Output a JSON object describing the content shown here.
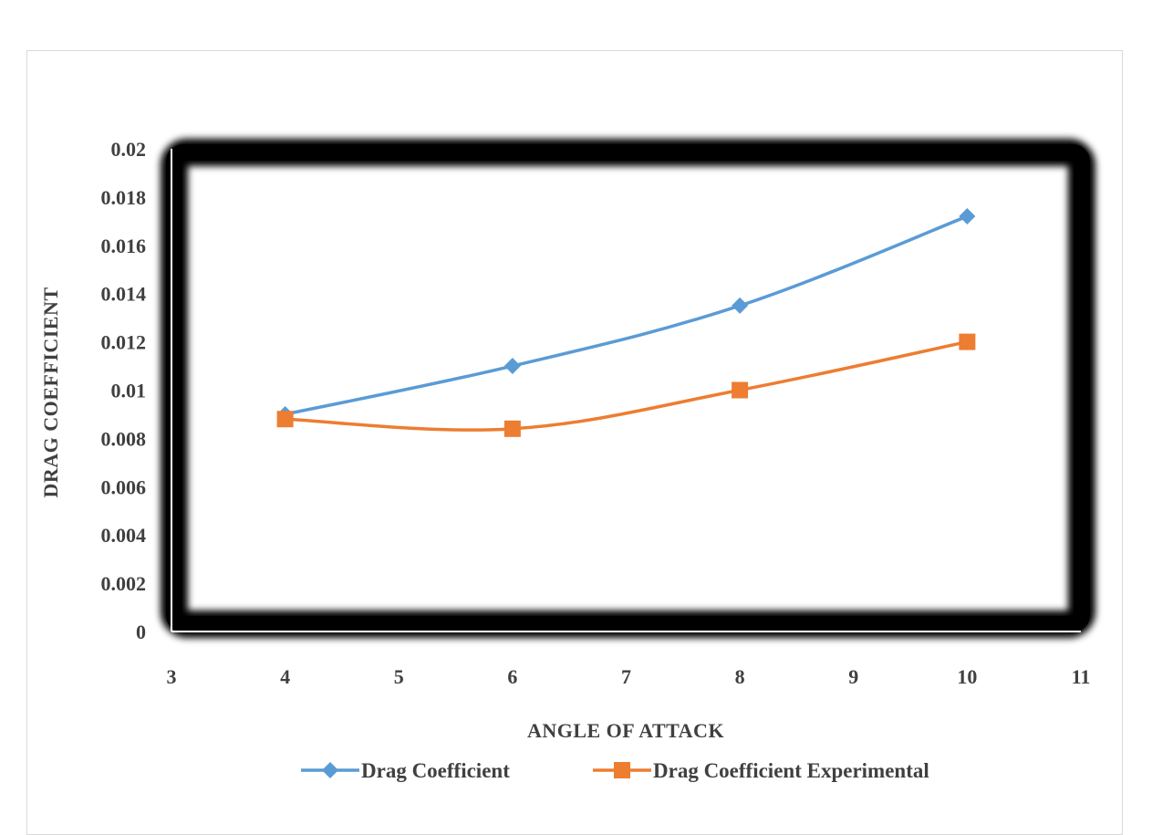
{
  "chart_data": {
    "type": "line",
    "xlabel": "ANGLE OF ATTACK",
    "ylabel": "DRAG  COEFFICIENT",
    "xlim": [
      3,
      11
    ],
    "ylim": [
      0,
      0.02
    ],
    "x_ticks": [
      "3",
      "4",
      "5",
      "6",
      "7",
      "8",
      "9",
      "10",
      "11"
    ],
    "y_ticks": [
      "0",
      "0.002",
      "0.004",
      "0.006",
      "0.008",
      "0.01",
      "0.012",
      "0.014",
      "0.016",
      "0.018",
      "0.02"
    ],
    "legend_position": "bottom",
    "grid": false,
    "smooth": true,
    "series": [
      {
        "name": "Drag Coefficient",
        "color": "#5b9bd5",
        "marker": "diamond",
        "x": [
          4,
          6,
          8,
          10
        ],
        "y": [
          0.009,
          0.011,
          0.0135,
          0.0172
        ]
      },
      {
        "name": "Drag Coefficient Experimental",
        "color": "#ed7d31",
        "marker": "square",
        "x": [
          4,
          6,
          8,
          10
        ],
        "y": [
          0.0088,
          0.0084,
          0.01,
          0.012
        ]
      }
    ]
  }
}
